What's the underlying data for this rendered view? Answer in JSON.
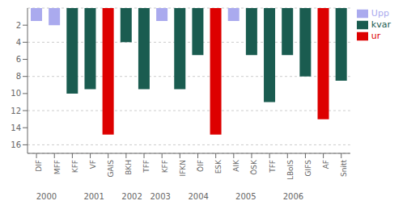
{
  "chart_data": {
    "type": "bar",
    "categories": [
      "DIF",
      "MFF",
      "KFF",
      "VF",
      "GAIS",
      "BKH",
      "TFF",
      "KFF",
      "IFKN",
      "ÖIF",
      "ESK",
      "AIK",
      "ÖSK",
      "TFF",
      "LBoIS",
      "GIFS",
      "AF",
      "Snitt"
    ],
    "series": [
      {
        "name": "Upp",
        "color": "#aaaaee",
        "values": [
          1.5,
          2.0,
          null,
          null,
          null,
          null,
          null,
          1.5,
          null,
          null,
          null,
          1.5,
          null,
          null,
          null,
          null,
          null,
          null
        ]
      },
      {
        "name": "kvar",
        "color": "#1a5c50",
        "values": [
          null,
          null,
          10.0,
          9.5,
          null,
          4.0,
          9.5,
          null,
          9.5,
          5.5,
          null,
          null,
          5.5,
          11.0,
          5.5,
          8.0,
          null,
          8.5
        ]
      },
      {
        "name": "ur",
        "color": "#dd0000",
        "values": [
          null,
          null,
          null,
          null,
          14.8,
          null,
          null,
          null,
          null,
          null,
          14.8,
          null,
          null,
          null,
          null,
          null,
          13.0,
          null
        ]
      }
    ],
    "stacked": true,
    "ylim": [
      17,
      0
    ],
    "yticks": [
      2,
      4,
      6,
      8,
      10,
      12,
      14,
      16
    ],
    "grid": true,
    "legend": "upper right",
    "annotations": [
      {
        "text": "2000",
        "x": 1.0
      },
      {
        "text": "2001",
        "x": 3.5
      },
      {
        "text": "2002",
        "x": 5.5
      },
      {
        "text": "2003",
        "x": 7.0
      },
      {
        "text": "2004",
        "x": 9.0
      },
      {
        "text": "2005",
        "x": 11.5
      },
      {
        "text": "2006",
        "x": 14.0
      }
    ]
  }
}
